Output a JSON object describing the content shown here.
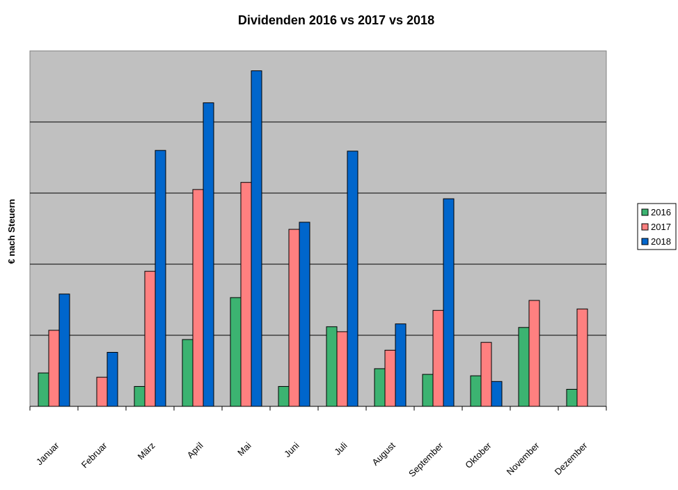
{
  "chart_data": {
    "type": "bar",
    "title": "Dividenden 2016 vs 2017 vs 2018",
    "xlabel": "",
    "ylabel": "€ nach Steuern",
    "categories": [
      "Januar",
      "Februar",
      "März",
      "April",
      "Mai",
      "Juni",
      "Juli",
      "August",
      "September",
      "Oktober",
      "November",
      "Dezember"
    ],
    "series": [
      {
        "name": "2016",
        "color": "#3cb371",
        "values": [
          9.4,
          null,
          5.6,
          18.8,
          30.6,
          5.6,
          22.4,
          10.6,
          9.0,
          8.6,
          22.2,
          4.8
        ]
      },
      {
        "name": "2017",
        "color": "#ff8080",
        "values": [
          21.4,
          8.2,
          38.0,
          61.0,
          63.0,
          49.8,
          21.0,
          15.8,
          27.0,
          18.0,
          29.8,
          27.4
        ]
      },
      {
        "name": "2018",
        "color": "#0066cc",
        "values": [
          31.6,
          15.2,
          72.0,
          85.4,
          94.4,
          51.8,
          71.8,
          23.2,
          58.4,
          7.0,
          null,
          null
        ]
      }
    ],
    "ylim": [
      0,
      100
    ],
    "gridlines": [
      20,
      40,
      60,
      80
    ],
    "grid": true,
    "legend": "right",
    "plot_background": "#c0c0c0"
  }
}
